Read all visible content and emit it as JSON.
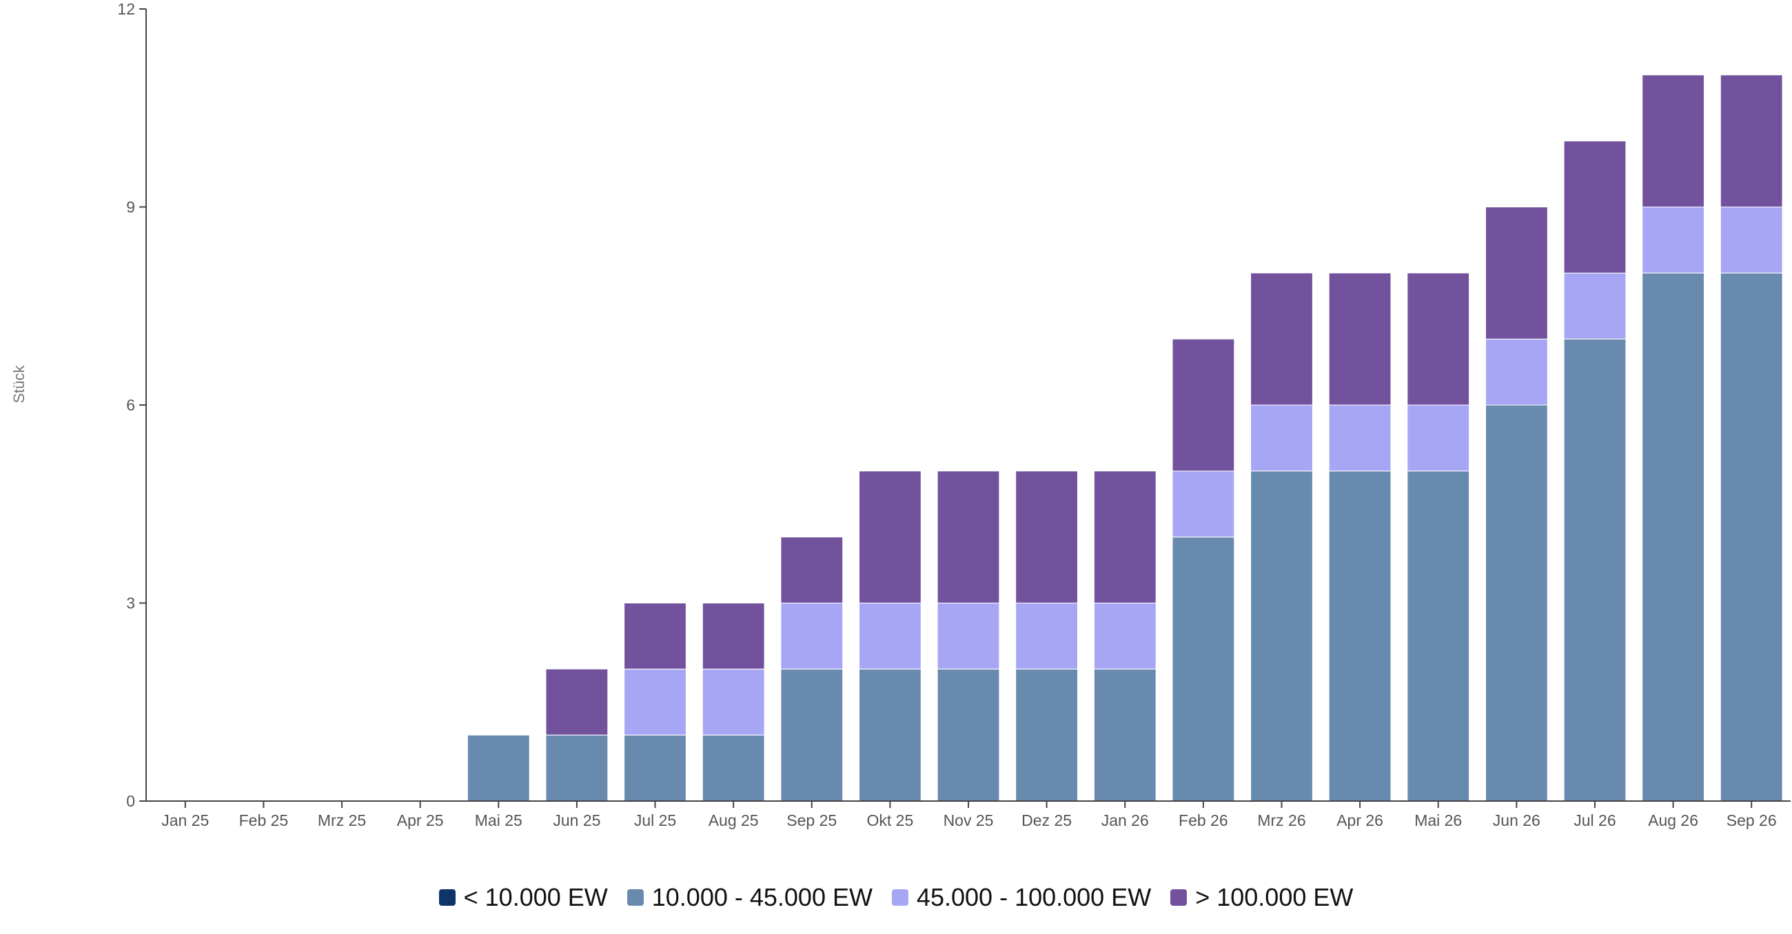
{
  "chart_data": {
    "type": "bar",
    "stacked": true,
    "ylabel": "Stück",
    "xlabel": "",
    "ylim": [
      0,
      12
    ],
    "yticks": [
      0,
      3,
      6,
      9,
      12
    ],
    "grid": false,
    "legend_position": "bottom-center",
    "categories": [
      "Jan 25",
      "Feb 25",
      "Mrz 25",
      "Apr 25",
      "Mai 25",
      "Jun 25",
      "Jul 25",
      "Aug 25",
      "Sep 25",
      "Okt 25",
      "Nov 25",
      "Dez 25",
      "Jan 26",
      "Feb 26",
      "Mrz 26",
      "Apr 26",
      "Mai 26",
      "Jun 26",
      "Jul 26",
      "Aug 26",
      "Sep 26"
    ],
    "series": [
      {
        "name": "< 10.000 EW",
        "color": "#0d3567",
        "values": [
          0,
          0,
          0,
          0,
          0,
          0,
          0,
          0,
          0,
          0,
          0,
          0,
          0,
          0,
          0,
          0,
          0,
          0,
          0,
          0,
          0
        ]
      },
      {
        "name": "10.000 - 45.000 EW",
        "color": "#688aae",
        "values": [
          0,
          0,
          0,
          0,
          1,
          1,
          1,
          1,
          2,
          2,
          2,
          2,
          2,
          4,
          5,
          5,
          5,
          6,
          7,
          8,
          8
        ]
      },
      {
        "name": "45.000 - 100.000 EW",
        "color": "#a6a6f5",
        "values": [
          0,
          0,
          0,
          0,
          0,
          0,
          1,
          1,
          1,
          1,
          1,
          1,
          1,
          1,
          1,
          1,
          1,
          1,
          1,
          1,
          1
        ]
      },
      {
        "name": "> 100.000 EW",
        "color": "#73529d",
        "values": [
          0,
          0,
          0,
          0,
          0,
          1,
          1,
          1,
          1,
          2,
          2,
          2,
          2,
          2,
          2,
          2,
          2,
          2,
          2,
          2,
          2
        ]
      }
    ]
  }
}
